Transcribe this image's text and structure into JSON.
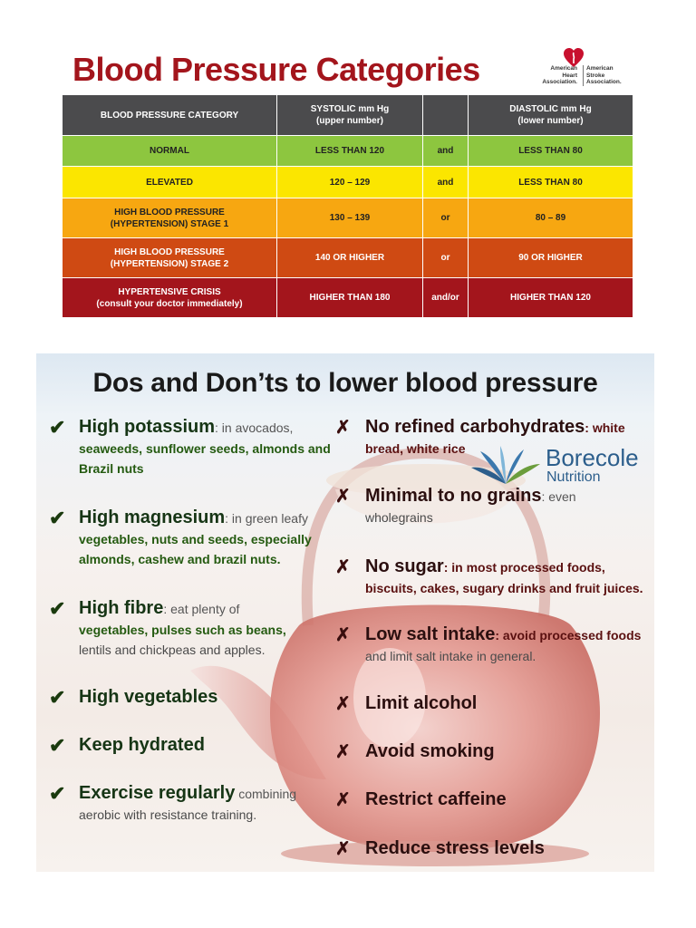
{
  "header": {
    "title": "Blood Pressure Categories",
    "logo": {
      "left_lines": [
        "American",
        "Heart",
        "Association."
      ],
      "right_lines": [
        "American",
        "Stroke",
        "Association."
      ],
      "icon": "heart-torch-icon"
    }
  },
  "bp_table": {
    "columns": {
      "category": "BLOOD PRESSURE CATEGORY",
      "systolic": [
        "SYSTOLIC mm Hg",
        "(upper number)"
      ],
      "connector": "",
      "diastolic": [
        "DIASTOLIC mm Hg",
        "(lower number)"
      ]
    },
    "rows": [
      {
        "category": [
          "NORMAL"
        ],
        "systolic": "LESS THAN 120",
        "connector": "and",
        "diastolic": "LESS THAN 80",
        "color": "#8dc63f"
      },
      {
        "category": [
          "ELEVATED"
        ],
        "systolic": "120 – 129",
        "connector": "and",
        "diastolic": "LESS THAN 80",
        "color": "#fbe600"
      },
      {
        "category": [
          "HIGH BLOOD PRESSURE",
          "(HYPERTENSION) STAGE 1"
        ],
        "systolic": "130 – 139",
        "connector": "or",
        "diastolic": "80 – 89",
        "color": "#f7a711"
      },
      {
        "category": [
          "HIGH BLOOD PRESSURE",
          "(HYPERTENSION) STAGE 2"
        ],
        "systolic": "140 OR HIGHER",
        "connector": "or",
        "diastolic": "90 OR HIGHER",
        "color": "#cf4a13"
      },
      {
        "category": [
          "HYPERTENSIVE CRISIS",
          "(consult your doctor immediately)"
        ],
        "systolic": "HIGHER THAN 180",
        "connector": "and/or",
        "diastolic": "HIGHER THAN 120",
        "color": "#a3151c"
      }
    ]
  },
  "poster": {
    "title": "Dos and Don’ts to lower blood pressure",
    "brand": {
      "name": "Borecole",
      "sub": "Nutrition"
    },
    "do_mark": "✔",
    "dont_mark": "✗",
    "dos": [
      {
        "head": "High potassium",
        "sub": ": in avocados,",
        "lines": [
          "seaweeds, sunflower seeds, almonds and",
          "Brazil nuts"
        ]
      },
      {
        "head": "High magnesium",
        "sub": ": in green leafy",
        "lines": [
          "vegetables, nuts and seeds, especially",
          "almonds, cashew and brazil nuts."
        ]
      },
      {
        "head": "High fibre",
        "sub": ": eat plenty of",
        "lines": [
          "vegetables, pulses such as beans,",
          "lentils and chickpeas and apples."
        ]
      },
      {
        "head": "High vegetables",
        "sub": "",
        "lines": []
      },
      {
        "head": "Keep hydrated",
        "sub": "",
        "lines": []
      },
      {
        "head": "Exercise regularly",
        "sub": " combining",
        "lines": [
          "aerobic with resistance training."
        ]
      }
    ],
    "donts": [
      {
        "head": "No refined carbohydrates",
        "sub": ": white",
        "lines": [
          "bread, white rice"
        ]
      },
      {
        "head": "Minimal to no grains",
        "sub": ": even",
        "lines": [
          "wholegrains"
        ]
      },
      {
        "head": "No sugar",
        "sub": ": in most processed foods,",
        "lines": [
          "biscuits, cakes, sugary drinks and fruit juices."
        ]
      },
      {
        "head": "Low salt intake",
        "sub": ": avoid processed foods",
        "lines": [
          "and limit salt intake in general."
        ]
      },
      {
        "head": "Limit alcohol",
        "sub": "",
        "lines": []
      },
      {
        "head": "Avoid smoking",
        "sub": "",
        "lines": []
      },
      {
        "head": "Restrict caffeine",
        "sub": "",
        "lines": []
      },
      {
        "head": "Reduce stress levels",
        "sub": "",
        "lines": []
      }
    ]
  }
}
